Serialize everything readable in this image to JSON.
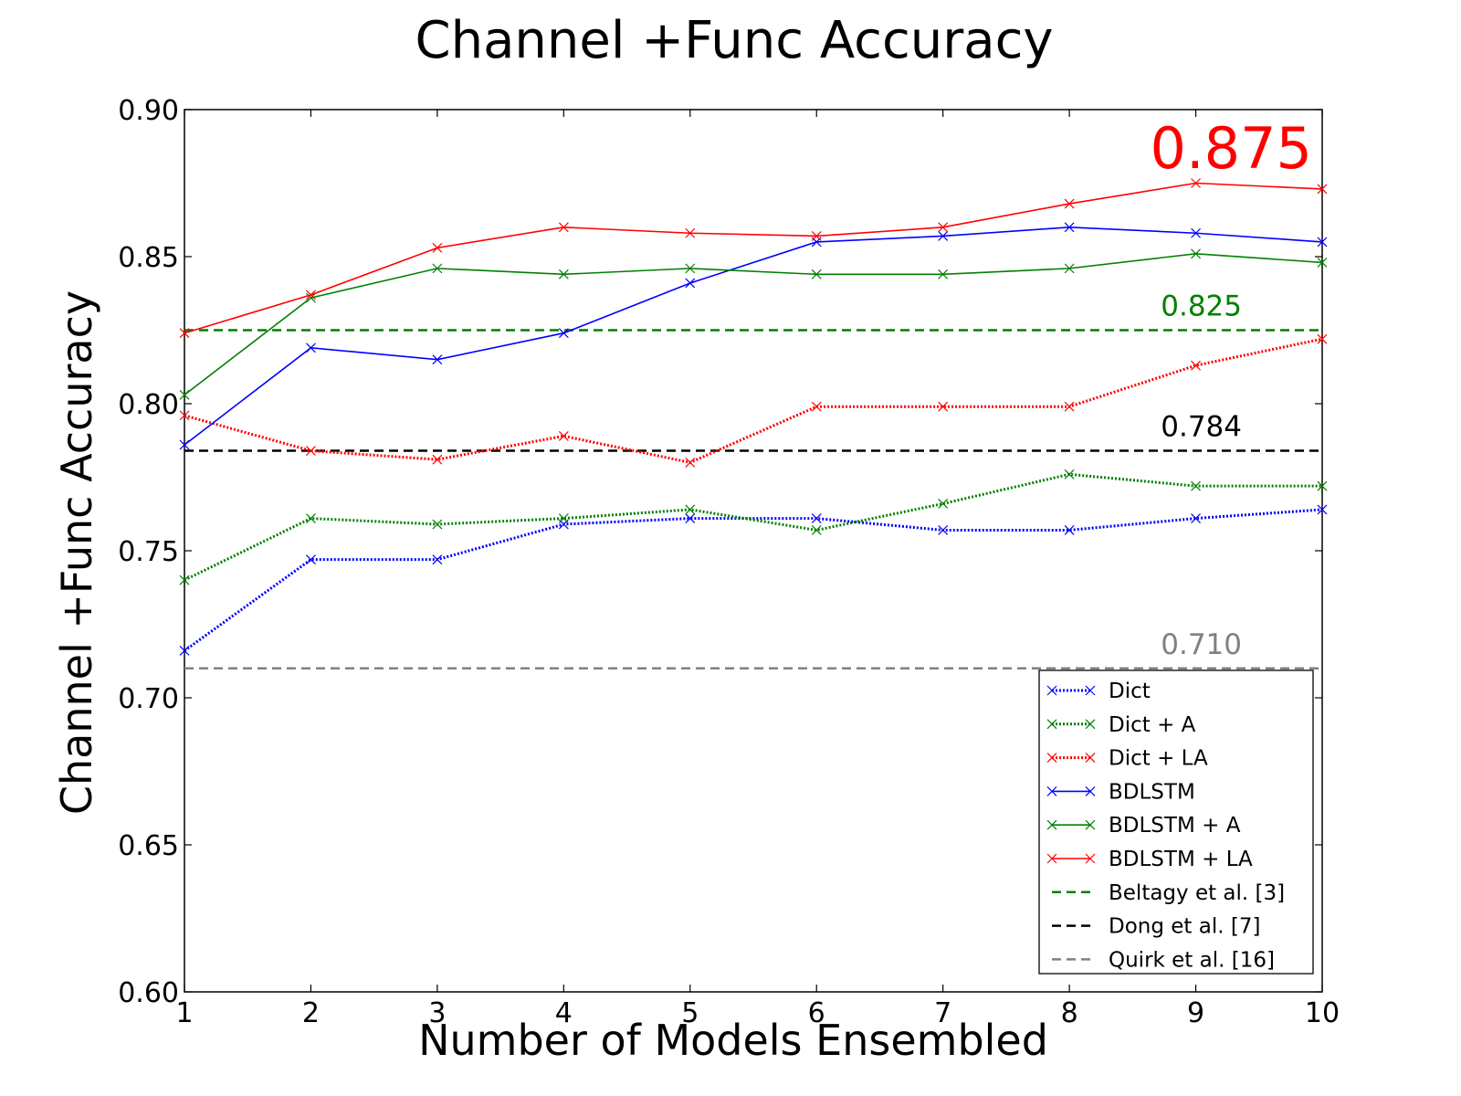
{
  "chart_data": {
    "type": "line",
    "title": "Channel +Func Accuracy",
    "xlabel": "Number of Models Ensembled",
    "ylabel": "Channel +Func Accuracy",
    "xlim": [
      1,
      10
    ],
    "ylim": [
      0.6,
      0.9
    ],
    "xticks": [
      "1",
      "2",
      "3",
      "4",
      "5",
      "6",
      "7",
      "8",
      "9",
      "10"
    ],
    "yticks": [
      "0.60",
      "0.65",
      "0.70",
      "0.75",
      "0.80",
      "0.85",
      "0.90"
    ],
    "grid": false,
    "legend_position": "bottom-right",
    "x": [
      1,
      2,
      3,
      4,
      5,
      6,
      7,
      8,
      9,
      10
    ],
    "series": [
      {
        "name": "Dict",
        "color": "#0000ff",
        "style": "dotted",
        "marker": "x",
        "values": [
          0.716,
          0.747,
          0.747,
          0.759,
          0.761,
          0.761,
          0.757,
          0.757,
          0.761,
          0.764
        ]
      },
      {
        "name": "Dict + A",
        "color": "#008000",
        "style": "dotted",
        "marker": "x",
        "values": [
          0.74,
          0.761,
          0.759,
          0.761,
          0.764,
          0.757,
          0.766,
          0.776,
          0.772,
          0.772
        ]
      },
      {
        "name": "Dict + LA",
        "color": "#ff0000",
        "style": "dotted",
        "marker": "x",
        "values": [
          0.796,
          0.784,
          0.781,
          0.789,
          0.78,
          0.799,
          0.799,
          0.799,
          0.813,
          0.822
        ]
      },
      {
        "name": "BDLSTM",
        "color": "#0000ff",
        "style": "solid",
        "marker": "x",
        "values": [
          0.786,
          0.819,
          0.815,
          0.824,
          0.841,
          0.855,
          0.857,
          0.86,
          0.858,
          0.855
        ]
      },
      {
        "name": "BDLSTM + A",
        "color": "#008000",
        "style": "solid",
        "marker": "x",
        "values": [
          0.803,
          0.836,
          0.846,
          0.844,
          0.846,
          0.844,
          0.844,
          0.846,
          0.851,
          0.848
        ]
      },
      {
        "name": "BDLSTM + LA",
        "color": "#ff0000",
        "style": "solid",
        "marker": "x",
        "values": [
          0.824,
          0.837,
          0.853,
          0.86,
          0.858,
          0.857,
          0.86,
          0.868,
          0.875,
          0.873
        ]
      }
    ],
    "reference_lines": [
      {
        "name": "Beltagy et al. [3]",
        "value": 0.825,
        "color": "#008000",
        "style": "dashed",
        "label": "0.825"
      },
      {
        "name": "Dong et al. [7]",
        "value": 0.784,
        "color": "#000000",
        "style": "dashed",
        "label": "0.784"
      },
      {
        "name": "Quirk et al. [16]",
        "value": 0.71,
        "color": "#808080",
        "style": "dashed",
        "label": "0.710"
      }
    ],
    "annotations": [
      {
        "text": "0.875",
        "color": "#ff0000",
        "size": "large"
      }
    ]
  }
}
